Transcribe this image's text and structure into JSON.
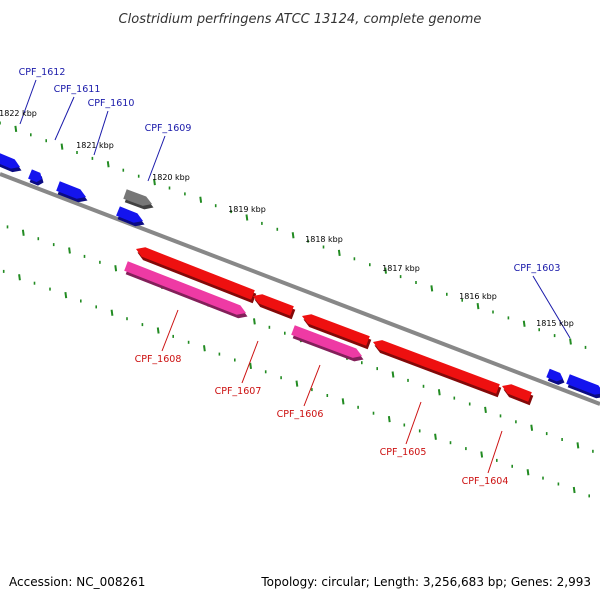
{
  "title": "Clostridium perfringens ATCC 13124, complete genome",
  "footer": {
    "accession": "Accession: NC_008261",
    "summary": "Topology: circular; Length: 3,256,683 bp; Genes: 2,993"
  },
  "colors": {
    "forward_gene": "#1414ee",
    "reverse_gene": "#ee1010",
    "reverse_rna": "#ee3aa4",
    "pseudo_gene": "#777777",
    "backbone": "#888888",
    "tick": "#228b22",
    "forward_label": "#1a1aaa",
    "reverse_label": "#cc1111"
  },
  "scale": {
    "labels": [
      "1822 kbp",
      "1821 kbp",
      "1820 kbp",
      "1819 kbp",
      "1818 kbp",
      "1817 kbp",
      "1816 kbp",
      "1815 kbp"
    ]
  },
  "genes": [
    {
      "label": "CPF_1612",
      "strand": "forward",
      "kind": "gene"
    },
    {
      "label": "CPF_1611",
      "strand": "forward",
      "kind": "gene"
    },
    {
      "label": "CPF_1610",
      "strand": "forward",
      "kind": "gene"
    },
    {
      "label": "CPF_1609",
      "strand": "forward",
      "kind": "pseudo"
    },
    {
      "label": "CPF_1603",
      "strand": "forward",
      "kind": "gene"
    },
    {
      "label": "CPF_1608",
      "strand": "reverse",
      "kind": "gene"
    },
    {
      "label": "CPF_1607",
      "strand": "reverse",
      "kind": "gene"
    },
    {
      "label": "CPF_1606",
      "strand": "reverse",
      "kind": "rna"
    },
    {
      "label": "CPF_1605",
      "strand": "reverse",
      "kind": "gene"
    },
    {
      "label": "CPF_1604",
      "strand": "reverse",
      "kind": "gene"
    }
  ]
}
